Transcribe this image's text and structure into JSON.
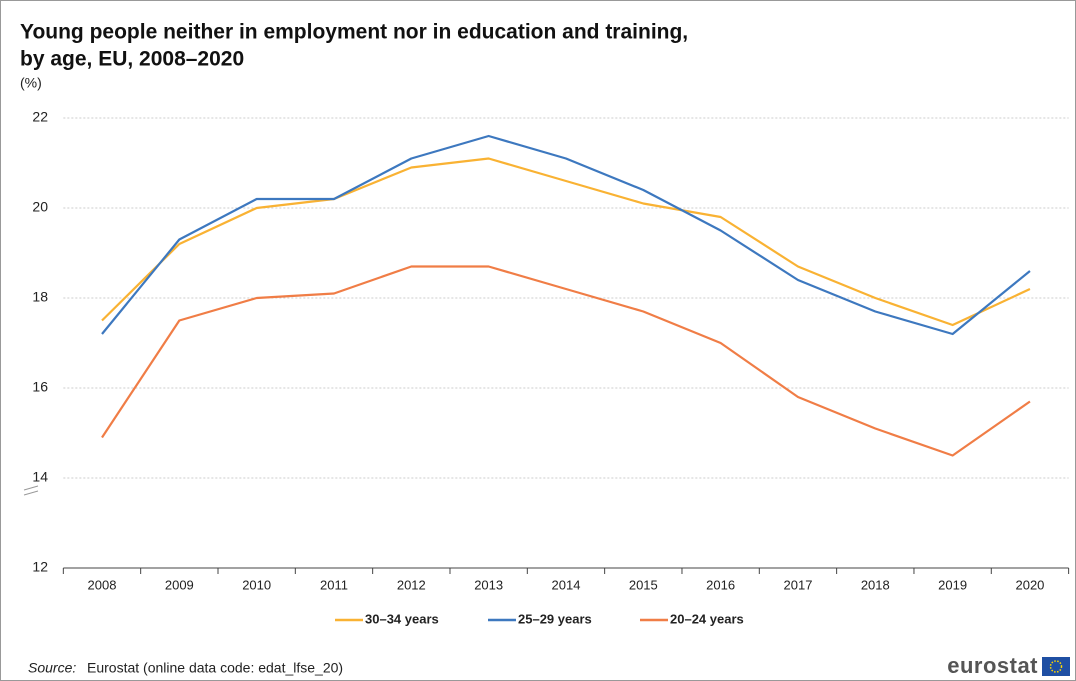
{
  "chart_data": {
    "type": "line",
    "title": "Young people neither in employment nor in education and training,",
    "subtitle": "by age, EU, 2008–2020",
    "y_label": "(%)",
    "source_label": "Source:",
    "source": "Eurostat (online data code: edat_lfse_20)",
    "logo": "eurostat",
    "categories": [
      "2008",
      "2009",
      "2010",
      "2011",
      "2012",
      "2013",
      "2014",
      "2015",
      "2016",
      "2017",
      "2018",
      "2019",
      "2020"
    ],
    "series": [
      {
        "name": "30–34 years",
        "color": "#f9b233",
        "values": [
          17.5,
          19.2,
          20.0,
          20.2,
          20.9,
          21.1,
          20.6,
          20.1,
          19.8,
          18.7,
          18.0,
          17.4,
          18.2
        ]
      },
      {
        "name": "25–29 years",
        "color": "#3d78bf",
        "values": [
          17.2,
          19.3,
          20.2,
          20.2,
          21.1,
          21.6,
          21.1,
          20.4,
          19.5,
          18.4,
          17.7,
          17.2,
          18.6
        ]
      },
      {
        "name": "20–24 years",
        "color": "#f07d46",
        "values": [
          14.9,
          17.5,
          18.0,
          18.1,
          18.7,
          18.7,
          18.2,
          17.7,
          17.0,
          15.8,
          15.1,
          14.5,
          15.7
        ]
      }
    ],
    "ylim": [
      12,
      22
    ],
    "yticks": [
      12,
      14,
      16,
      18,
      20,
      22
    ],
    "grid": true,
    "legend": "bottom"
  }
}
